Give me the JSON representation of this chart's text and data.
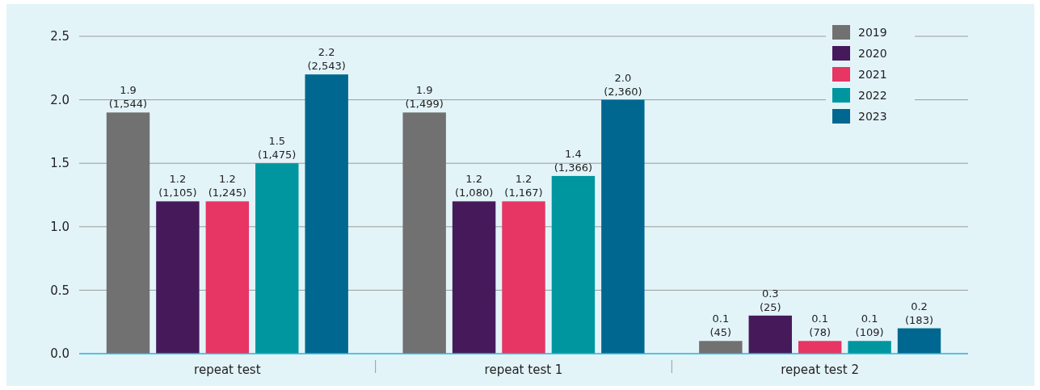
{
  "chart_data": {
    "type": "bar",
    "categories": [
      "repeat test",
      "repeat test 1",
      "repeat test 2"
    ],
    "series": [
      {
        "name": "2019",
        "color": "#717171",
        "values": [
          1.9,
          1.9,
          0.1
        ],
        "value_labels": [
          "1.9 (1,544)",
          "1.9 (1,499)",
          "0.1 (45)"
        ]
      },
      {
        "name": "2020",
        "color": "#461a5a",
        "values": [
          1.2,
          1.2,
          0.3
        ],
        "value_labels": [
          "1.2 (1,105)",
          "1.2 (1,080)",
          "0.3 (25)"
        ]
      },
      {
        "name": "2021",
        "color": "#e73564",
        "values": [
          1.2,
          1.2,
          0.1
        ],
        "value_labels": [
          "1.2 (1,245)",
          "1.2 (1,167)",
          "0.1 (78)"
        ]
      },
      {
        "name": "2022",
        "color": "#0096a0",
        "values": [
          1.5,
          1.4,
          0.1
        ],
        "value_labels": [
          "1.5 (1,475)",
          "1.4 (1,366)",
          "0.1 (109)"
        ]
      },
      {
        "name": "2023",
        "color": "#006890",
        "values": [
          2.2,
          2.0,
          0.2
        ],
        "value_labels": [
          "2.2 (2,543)",
          "2.0 (2,360)",
          "0.2 (183)"
        ]
      }
    ],
    "ylim": [
      0,
      2.5
    ],
    "yticks": [
      {
        "value": 0,
        "label": "0.0"
      },
      0.5,
      {
        "value": 1,
        "label": "1.0"
      },
      1.5,
      {
        "value": 2,
        "label": "2.0"
      },
      2.5
    ],
    "grid": "y",
    "legend": "top right"
  }
}
